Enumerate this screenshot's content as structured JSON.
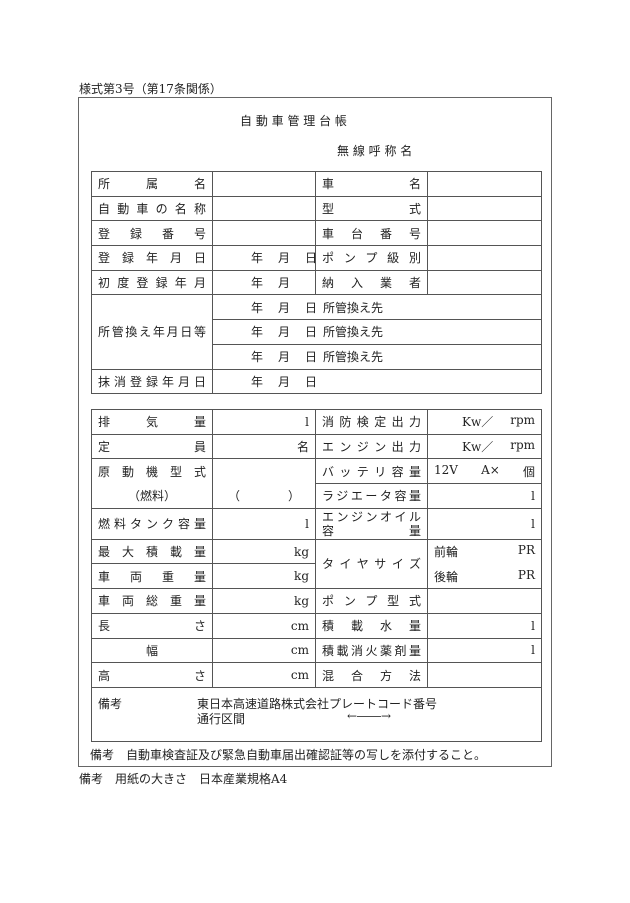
{
  "form_number": "様式第3号（第17条関係）",
  "title": "自 動 車 管 理 台 帳",
  "radio_callsign": "無 線 呼 称 名",
  "table1": {
    "affiliation": "所属名",
    "vehicle_name": "車名",
    "car_name": "自動車の名称",
    "model": "型式",
    "reg_number": "登録番号",
    "chassis_number": "車台番号",
    "reg_date": "登録年月日",
    "pump_class": "ポンプ級別",
    "first_reg": "初度登録年月",
    "supplier": "納入業者",
    "transfer": "所管換え年月日等",
    "transfer_dest": "所管換え先",
    "deregistration": "抹消登録年月日",
    "year": "年",
    "month": "月",
    "day": "日"
  },
  "table2": {
    "displacement": "排気量",
    "displacement_unit": "l",
    "fire_output": "消防検定出力",
    "kw": "Kw／",
    "rpm": "rpm",
    "capacity": "定員",
    "capacity_unit": "名",
    "engine_output": "エンジン出力",
    "motor_type": "原動機型式",
    "fuel": "（燃料）",
    "fuel_paren": "（　　　　）",
    "battery": "バッテリ容量",
    "battery_v": "12V",
    "battery_a": "A×",
    "battery_n": "個",
    "radiator": "ラジエータ容量",
    "liter": "l",
    "fuel_tank": "燃料タンク容量",
    "oil_1": "エンジンオイル",
    "oil_2": "容量",
    "max_load": "最大積載量",
    "kg": "kg",
    "tire": "タイヤサイズ",
    "front": "前輪",
    "rear": "後輪",
    "pr": "PR",
    "vehicle_weight": "車両重量",
    "gross_weight": "車両総重量",
    "pump_type": "ポンプ型式",
    "length": "長さ",
    "cm": "cm",
    "water": "積載水量",
    "width": "幅",
    "agent": "積載消火薬剤量",
    "height": "高さ",
    "mixing": "混合方法",
    "remarks_label": "備考",
    "remarks_line1": "東日本高速道路株式会社プレートコード番号",
    "remarks_line2": "通行区間",
    "arrow": "←――→"
  },
  "note": "備考　自動車検査証及び緊急自動車届出確認証等の写しを添付すること。",
  "footer": "備考　用紙の大きさ　日本産業規格A4"
}
